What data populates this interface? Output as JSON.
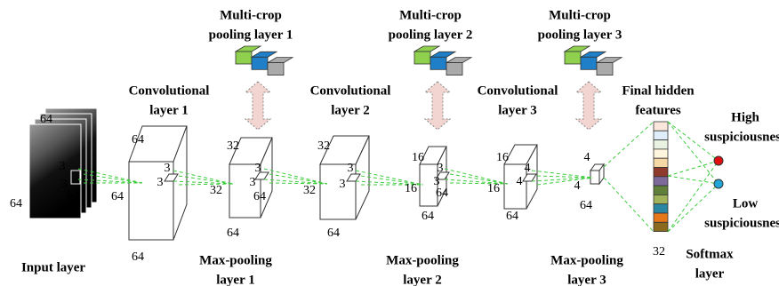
{
  "multi_crop_labels": [
    [
      "Multi-crop",
      "pooling layer 1"
    ],
    [
      "Multi-crop",
      "pooling layer 2"
    ],
    [
      "Multi-crop",
      "pooling layer 3"
    ]
  ],
  "conv_labels": [
    [
      "Convolutional",
      "layer 1"
    ],
    [
      "Convolutional",
      "layer 2"
    ],
    [
      "Convolutional",
      "layer 3"
    ]
  ],
  "pool_labels": [
    [
      "Max-pooling",
      "layer 1"
    ],
    [
      "Max-pooling",
      "layer 2"
    ],
    [
      "Max-pooling",
      "layer 3"
    ]
  ],
  "input_label": "Input layer",
  "features_label": [
    "Final hidden",
    "features"
  ],
  "softmax_label": [
    "Softmax",
    "layer"
  ],
  "outputs": [
    [
      "High",
      "suspiciousness"
    ],
    [
      "Low",
      "suspiciousness"
    ]
  ],
  "dims": [
    "64",
    "64",
    "3",
    "3",
    "64",
    "64",
    "64",
    "64",
    "3",
    "3",
    "32",
    "32",
    "64",
    "3",
    "3",
    "64",
    "32",
    "32",
    "64",
    "3",
    "3",
    "16",
    "16",
    "64",
    "3",
    "3",
    "64",
    "16",
    "16",
    "64",
    "4",
    "4",
    "4",
    "4",
    "64",
    "32"
  ]
}
